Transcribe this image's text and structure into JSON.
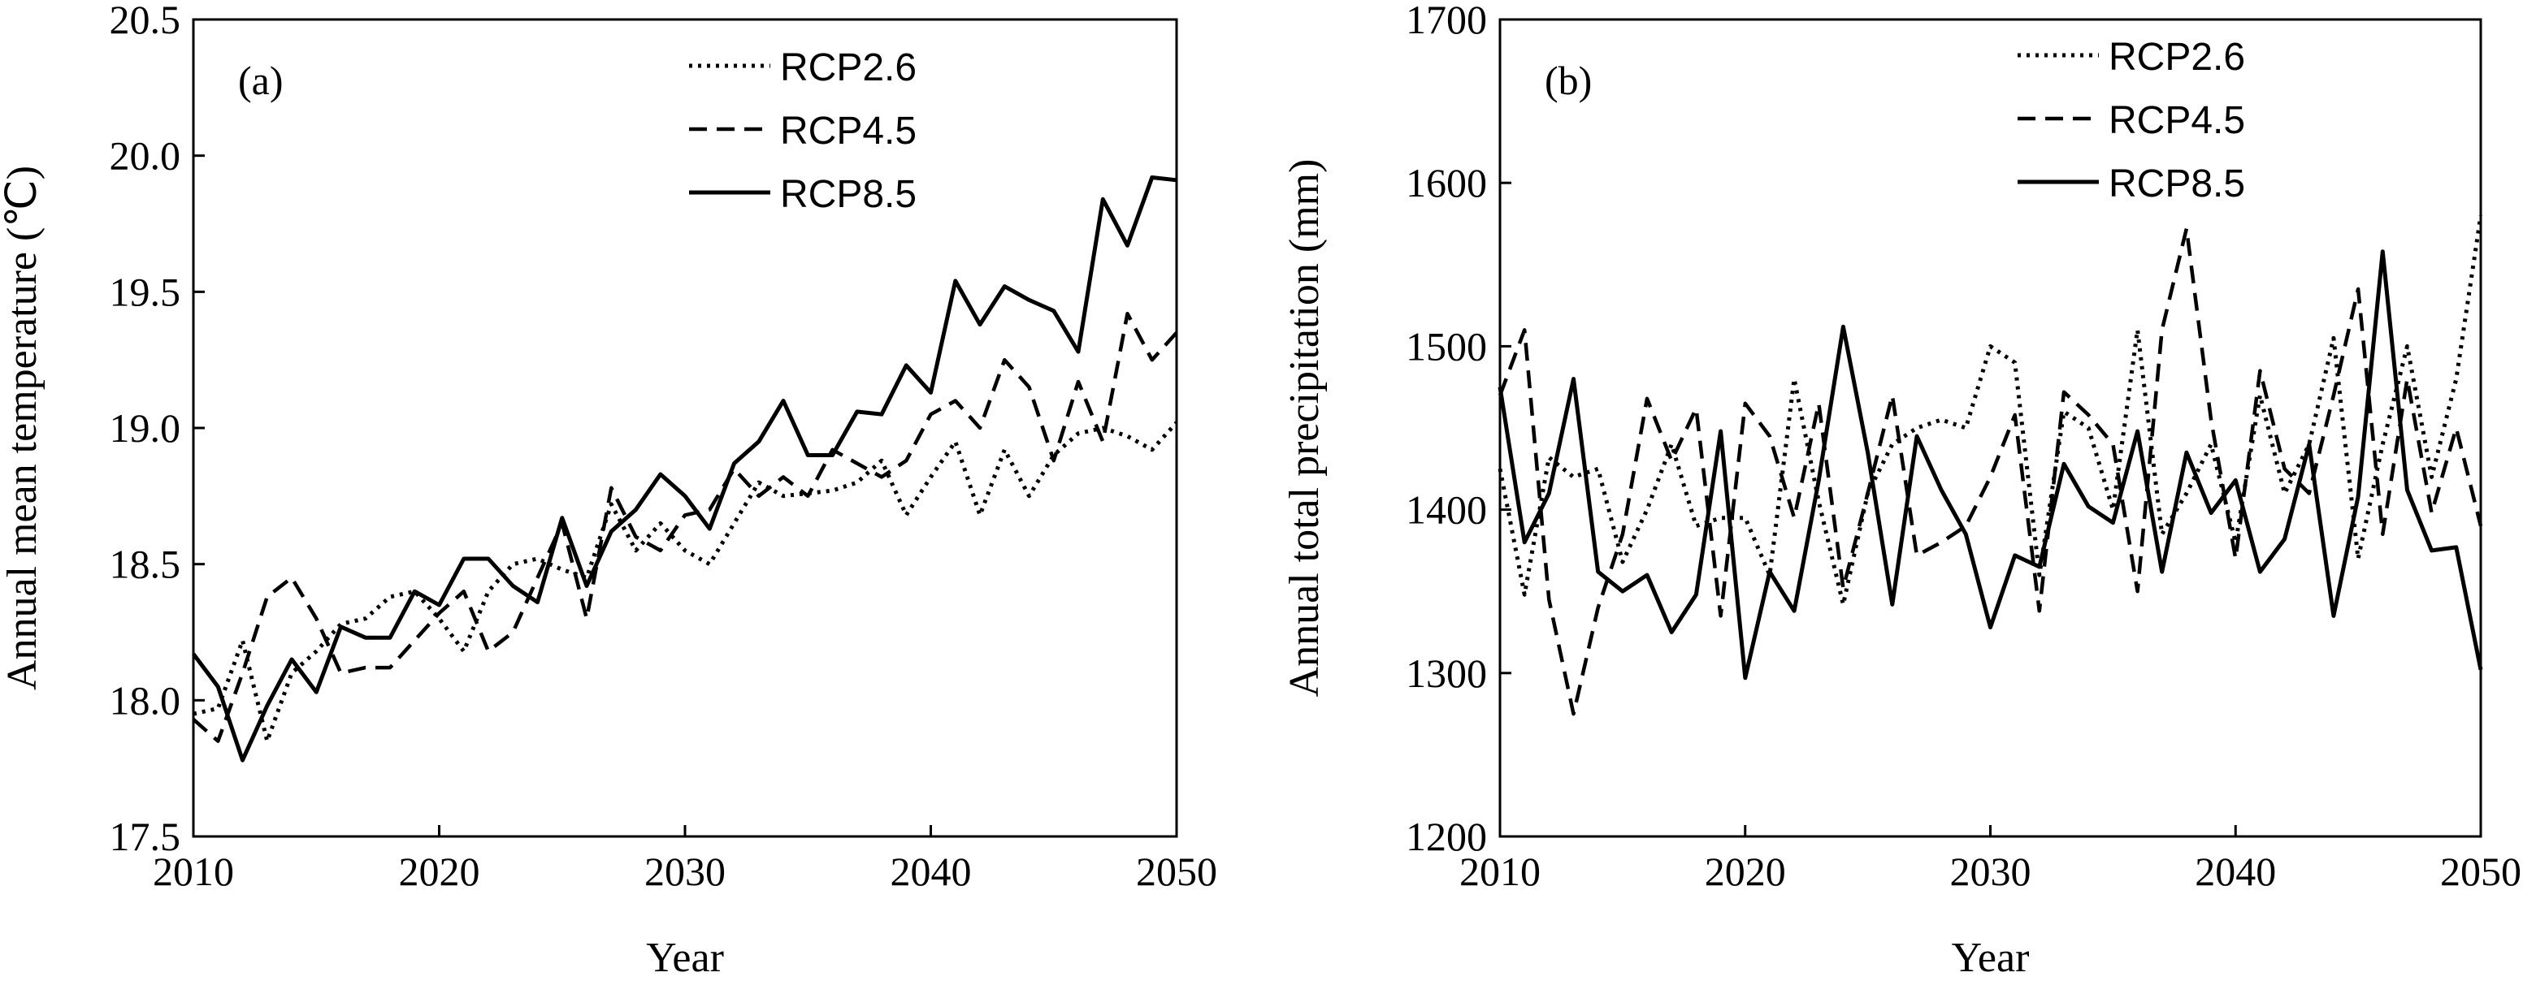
{
  "chart_data": [
    {
      "type": "line",
      "panel_label": "(a)",
      "xlabel": "Year",
      "ylabel": "Annual mean temperature (℃)",
      "xlim": [
        2010,
        2050
      ],
      "ylim": [
        17.5,
        20.5
      ],
      "xticks": [
        "2010",
        "2020",
        "2030",
        "2040",
        "2050"
      ],
      "yticks": [
        "17.5",
        "18.0",
        "18.5",
        "19.0",
        "19.5",
        "20.0",
        "20.5"
      ],
      "legend_position": "top-right",
      "x": [
        2010,
        2011,
        2012,
        2013,
        2014,
        2015,
        2016,
        2017,
        2018,
        2019,
        2020,
        2021,
        2022,
        2023,
        2024,
        2025,
        2026,
        2027,
        2028,
        2029,
        2030,
        2031,
        2032,
        2033,
        2034,
        2035,
        2036,
        2037,
        2038,
        2039,
        2040,
        2041,
        2042,
        2043,
        2044,
        2045,
        2046,
        2047,
        2048,
        2049,
        2050
      ],
      "series": [
        {
          "name": "RCP2.6",
          "style": "dotted",
          "values": [
            17.95,
            17.97,
            18.22,
            17.85,
            18.1,
            18.18,
            18.28,
            18.3,
            18.38,
            18.4,
            18.3,
            18.18,
            18.4,
            18.5,
            18.52,
            18.48,
            18.45,
            18.72,
            18.55,
            18.65,
            18.55,
            18.5,
            18.65,
            18.8,
            18.75,
            18.76,
            18.77,
            18.8,
            18.88,
            18.68,
            18.82,
            18.95,
            18.68,
            18.92,
            18.75,
            18.9,
            18.98,
            19.0,
            18.97,
            18.92,
            19.02
          ]
        },
        {
          "name": "RCP4.5",
          "style": "dashed",
          "values": [
            17.93,
            17.85,
            18.1,
            18.38,
            18.45,
            18.3,
            18.1,
            18.12,
            18.12,
            18.22,
            18.32,
            18.4,
            18.18,
            18.25,
            18.45,
            18.65,
            18.3,
            18.78,
            18.6,
            18.55,
            18.68,
            18.7,
            18.85,
            18.75,
            18.82,
            18.75,
            18.92,
            18.87,
            18.82,
            18.88,
            19.05,
            19.1,
            19.0,
            19.25,
            19.15,
            18.88,
            19.17,
            18.95,
            19.42,
            19.25,
            19.35
          ]
        },
        {
          "name": "RCP8.5",
          "style": "solid",
          "values": [
            18.17,
            18.05,
            17.78,
            17.98,
            18.15,
            18.03,
            18.27,
            18.23,
            18.23,
            18.4,
            18.35,
            18.52,
            18.52,
            18.42,
            18.36,
            18.67,
            18.42,
            18.62,
            18.7,
            18.83,
            18.75,
            18.63,
            18.87,
            18.95,
            19.1,
            18.9,
            18.9,
            19.06,
            19.05,
            19.23,
            19.13,
            19.54,
            19.38,
            19.52,
            19.47,
            19.43,
            19.28,
            19.84,
            19.67,
            19.92,
            19.91
          ]
        }
      ]
    },
    {
      "type": "line",
      "panel_label": "(b)",
      "xlabel": "Year",
      "ylabel": "Annual total precipitation (mm)",
      "xlim": [
        2010,
        2050
      ],
      "ylim": [
        1200,
        1700
      ],
      "xticks": [
        "2010",
        "2020",
        "2030",
        "2040",
        "2050"
      ],
      "yticks": [
        "1200",
        "1300",
        "1400",
        "1500",
        "1600",
        "1700"
      ],
      "legend_position": "top-right",
      "x": [
        2010,
        2011,
        2012,
        2013,
        2014,
        2015,
        2016,
        2017,
        2018,
        2019,
        2020,
        2021,
        2022,
        2023,
        2024,
        2025,
        2026,
        2027,
        2028,
        2029,
        2030,
        2031,
        2032,
        2033,
        2034,
        2035,
        2036,
        2037,
        2038,
        2039,
        2040,
        2041,
        2042,
        2043,
        2044,
        2045,
        2046,
        2047,
        2048,
        2049,
        2050
      ],
      "series": [
        {
          "name": "RCP2.6",
          "style": "dotted",
          "values": [
            1425,
            1348,
            1432,
            1420,
            1425,
            1368,
            1400,
            1440,
            1390,
            1395,
            1395,
            1360,
            1480,
            1405,
            1342,
            1410,
            1440,
            1450,
            1455,
            1450,
            1500,
            1490,
            1360,
            1460,
            1450,
            1400,
            1510,
            1385,
            1410,
            1440,
            1380,
            1470,
            1410,
            1440,
            1505,
            1370,
            1440,
            1500,
            1420,
            1480,
            1580
          ]
        },
        {
          "name": "RCP4.5",
          "style": "dashed",
          "values": [
            1470,
            1510,
            1345,
            1275,
            1340,
            1385,
            1468,
            1430,
            1462,
            1335,
            1465,
            1445,
            1395,
            1465,
            1352,
            1410,
            1470,
            1372,
            1380,
            1390,
            1420,
            1458,
            1338,
            1472,
            1458,
            1440,
            1350,
            1510,
            1572,
            1455,
            1370,
            1485,
            1425,
            1410,
            1470,
            1535,
            1385,
            1480,
            1398,
            1450,
            1390
          ]
        },
        {
          "name": "RCP8.5",
          "style": "solid",
          "values": [
            1475,
            1380,
            1410,
            1480,
            1362,
            1350,
            1360,
            1325,
            1348,
            1448,
            1297,
            1362,
            1338,
            1418,
            1512,
            1435,
            1342,
            1445,
            1412,
            1385,
            1328,
            1372,
            1365,
            1428,
            1402,
            1392,
            1448,
            1362,
            1435,
            1398,
            1418,
            1362,
            1382,
            1440,
            1335,
            1408,
            1558,
            1412,
            1375,
            1377,
            1302
          ]
        }
      ]
    }
  ]
}
